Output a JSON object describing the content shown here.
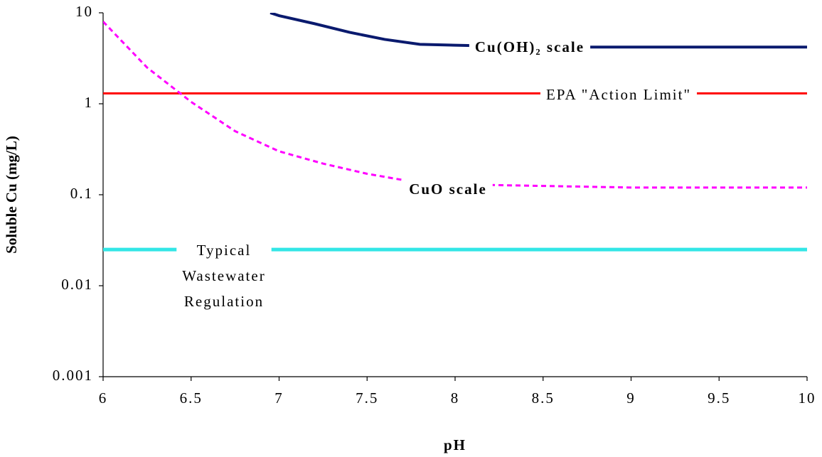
{
  "chart_data": {
    "type": "line",
    "log_y": true,
    "x_label": "pH",
    "y_label": "Soluble Cu (mg/L)",
    "xlim": [
      6,
      10
    ],
    "xticks": [
      6,
      6.5,
      7,
      7.5,
      8,
      8.5,
      9,
      9.5,
      10
    ],
    "ylim": [
      0.001,
      10
    ],
    "yticks": [
      0.001,
      0.01,
      0.1,
      1,
      10
    ],
    "series": [
      {
        "name": "Cu(OH)₂ scale",
        "color": "#0a1a6e",
        "dash": false,
        "x": [
          6.95,
          7,
          7.2,
          7.4,
          7.6,
          7.8,
          8,
          8.5,
          9,
          10
        ],
        "values": [
          10,
          9.3,
          7.6,
          6.1,
          5.1,
          4.5,
          4.4,
          4.2,
          4.2,
          4.2
        ]
      },
      {
        "name": "EPA \"Action Limit\"",
        "color": "#ff0000",
        "dash": false,
        "x": [
          6,
          10
        ],
        "values": [
          1.3,
          1.3
        ]
      },
      {
        "name": "CuO scale",
        "color": "#ff00ff",
        "dash": true,
        "x": [
          6,
          6.25,
          6.5,
          6.75,
          7,
          7.25,
          7.5,
          7.75,
          8,
          8.5,
          9,
          10
        ],
        "values": [
          8,
          2.5,
          1.05,
          0.5,
          0.3,
          0.22,
          0.17,
          0.14,
          0.13,
          0.125,
          0.12,
          0.12
        ]
      },
      {
        "name": "Typical Wastewater Regulation",
        "color": "#33e6e6",
        "dash": false,
        "x": [
          6,
          10
        ],
        "values": [
          0.025,
          0.025
        ]
      }
    ]
  }
}
